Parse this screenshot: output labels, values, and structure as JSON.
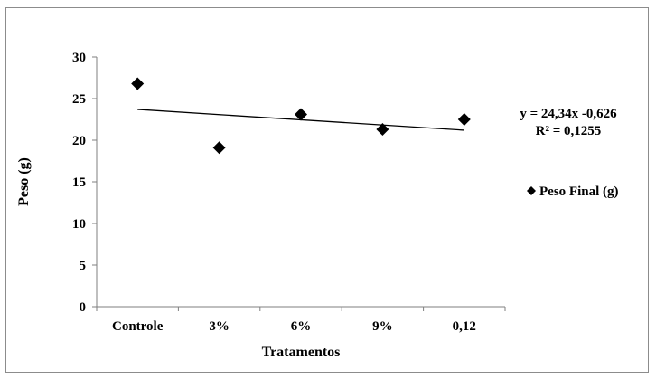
{
  "chart_data": {
    "type": "scatter",
    "title": "",
    "xlabel": "Tratamentos",
    "ylabel": "Peso (g)",
    "ylim": [
      0,
      30
    ],
    "yticks": [
      0,
      5,
      10,
      15,
      20,
      25,
      30
    ],
    "categories": [
      "Controle",
      "3%",
      "6%",
      "9%",
      "0,12"
    ],
    "series": [
      {
        "name": "Peso Final (g)",
        "values": [
          26.8,
          19.1,
          23.1,
          21.3,
          22.5
        ],
        "marker": "diamond",
        "color": "#000000"
      }
    ],
    "trendline": {
      "type": "linear",
      "start_value": 23.7,
      "end_value": 21.2,
      "equation": "y = 24,34x -0,626",
      "r_squared": "R² = 0,1255",
      "color": "#000000"
    },
    "grid": false,
    "legend_position": "right"
  }
}
